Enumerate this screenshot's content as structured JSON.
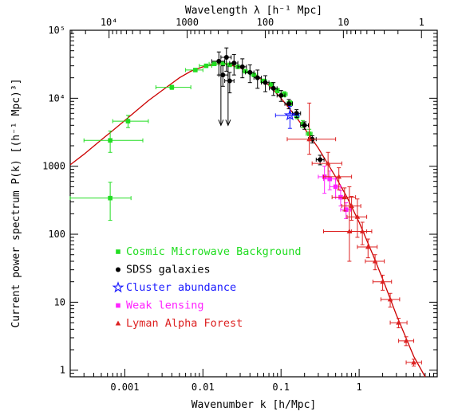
{
  "chart_data": {
    "type": "scatter",
    "xlabel": "Wavenumber k [h/Mpc]",
    "ylabel": "Current power spectrum P(k) [(h⁻¹ Mpc)³]",
    "top_axis_label": "Wavelength λ [h⁻¹ Mpc]",
    "x_scale": "log",
    "y_scale": "log",
    "xlim": [
      0.0002,
      10
    ],
    "ylim": [
      0.8,
      100000
    ],
    "x_ticks": [
      {
        "value": 0.001,
        "label": "0.001"
      },
      {
        "value": 0.01,
        "label": "0.01"
      },
      {
        "value": 0.1,
        "label": "0.1"
      },
      {
        "value": 1,
        "label": "1"
      }
    ],
    "y_ticks": [
      {
        "value": 1,
        "label": "1"
      },
      {
        "value": 10,
        "label": "10"
      },
      {
        "value": 100,
        "label": "100"
      },
      {
        "value": 1000,
        "label": "1000"
      },
      {
        "value": 10000,
        "label": "10⁴"
      },
      {
        "value": 100000,
        "label": "10⁵"
      }
    ],
    "top_ticks": [
      {
        "value": 10000,
        "label": "10⁴"
      },
      {
        "value": 1000,
        "label": "1000"
      },
      {
        "value": 100,
        "label": "100"
      },
      {
        "value": 10,
        "label": "10"
      },
      {
        "value": 1,
        "label": "1"
      }
    ],
    "legend_position": "lower-left",
    "model_curve": {
      "color": "#cc0000",
      "points": [
        [
          0.0002,
          1050
        ],
        [
          0.0003,
          1500
        ],
        [
          0.0005,
          2450
        ],
        [
          0.0007,
          3350
        ],
        [
          0.001,
          4700
        ],
        [
          0.0015,
          7000
        ],
        [
          0.002,
          9200
        ],
        [
          0.003,
          13000
        ],
        [
          0.005,
          20000
        ],
        [
          0.007,
          25000
        ],
        [
          0.01,
          29000
        ],
        [
          0.015,
          32000
        ],
        [
          0.02,
          32000
        ],
        [
          0.03,
          28000
        ],
        [
          0.05,
          21000
        ],
        [
          0.07,
          15500
        ],
        [
          0.1,
          10000
        ],
        [
          0.15,
          5600
        ],
        [
          0.2,
          3600
        ],
        [
          0.3,
          1850
        ],
        [
          0.5,
          700
        ],
        [
          0.7,
          350
        ],
        [
          1,
          150
        ],
        [
          1.5,
          50
        ],
        [
          2,
          22
        ],
        [
          3,
          6.5
        ],
        [
          5,
          1.6
        ],
        [
          7,
          0.8
        ]
      ]
    },
    "series": [
      {
        "name": "Cosmic Microwave Background",
        "color": "#22dd22",
        "marker": "square",
        "points": [
          {
            "x": 0.00065,
            "y": 340,
            "xerr": [
              0.0002,
              0.0012
            ],
            "yerr": [
              160,
              580
            ]
          },
          {
            "x": 0.00065,
            "y": 2400,
            "xerr": [
              0.0003,
              0.0017
            ],
            "yerr": [
              1600,
              3300
            ]
          },
          {
            "x": 0.0011,
            "y": 4600,
            "xerr": [
              0.0007,
              0.002
            ],
            "yerr": [
              3700,
              5600
            ]
          },
          {
            "x": 0.004,
            "y": 14500,
            "xerr": [
              0.0025,
              0.007
            ],
            "yerr": [
              13500,
              15500
            ]
          },
          {
            "x": 0.008,
            "y": 26000,
            "xerr": [
              0.006,
              0.01
            ],
            "yerr": [
              25000,
              27000
            ]
          },
          {
            "x": 0.011,
            "y": 30000,
            "xerr": [
              0.009,
              0.013
            ],
            "yerr": [
              29000,
              31000
            ]
          },
          {
            "x": 0.014,
            "y": 32000,
            "xerr": [
              0.012,
              0.016
            ],
            "yerr": [
              31000,
              33000
            ]
          },
          {
            "x": 0.018,
            "y": 32500,
            "xerr": [
              0.016,
              0.02
            ],
            "yerr": [
              31500,
              33500
            ]
          },
          {
            "x": 0.022,
            "y": 31000,
            "xerr": [
              0.02,
              0.025
            ],
            "yerr": [
              30000,
              32000
            ]
          },
          {
            "x": 0.028,
            "y": 29000,
            "xerr": [
              0.025,
              0.032
            ],
            "yerr": [
              28000,
              30000
            ]
          },
          {
            "x": 0.035,
            "y": 25000,
            "xerr": [
              0.032,
              0.04
            ],
            "yerr": [
              24000,
              26000
            ]
          },
          {
            "x": 0.045,
            "y": 22000,
            "xerr": [
              0.04,
              0.05
            ],
            "yerr": [
              21000,
              23000
            ]
          },
          {
            "x": 0.06,
            "y": 18000,
            "xerr": [
              0.055,
              0.065
            ],
            "yerr": [
              17000,
              19000
            ]
          },
          {
            "x": 0.075,
            "y": 16000,
            "xerr": [
              0.07,
              0.08
            ],
            "yerr": [
              15000,
              17000
            ]
          },
          {
            "x": 0.09,
            "y": 13000,
            "xerr": [
              0.085,
              0.095
            ],
            "yerr": [
              12000,
              14000
            ]
          },
          {
            "x": 0.11,
            "y": 11500,
            "xerr": [
              0.1,
              0.12
            ],
            "yerr": [
              10500,
              12500
            ]
          },
          {
            "x": 0.13,
            "y": 8500,
            "xerr": [
              0.12,
              0.14
            ],
            "yerr": [
              7800,
              9200
            ]
          },
          {
            "x": 0.16,
            "y": 5500,
            "xerr": [
              0.15,
              0.17
            ],
            "yerr": [
              5000,
              6000
            ]
          },
          {
            "x": 0.19,
            "y": 4200,
            "xerr": [
              0.18,
              0.2
            ],
            "yerr": [
              3700,
              4700
            ]
          },
          {
            "x": 0.23,
            "y": 3000,
            "xerr": [
              0.21,
              0.25
            ],
            "yerr": [
              2500,
              3500
            ]
          }
        ]
      },
      {
        "name": "SDSS galaxies",
        "color": "#000000",
        "marker": "circle",
        "points": [
          {
            "x": 0.016,
            "y": 35000,
            "xerr": [
              0.013,
              0.019
            ],
            "yerr": [
              22000,
              48000
            ]
          },
          {
            "x": 0.02,
            "y": 40000,
            "xerr": [
              0.017,
              0.023
            ],
            "yerr": [
              25000,
              55000
            ]
          },
          {
            "x": 0.025,
            "y": 33000,
            "xerr": [
              0.022,
              0.028
            ],
            "yerr": [
              22000,
              44000
            ]
          },
          {
            "x": 0.018,
            "y": 22000,
            "xerr": [
              0.016,
              0.021
            ],
            "yerr": [
              15000,
              30000
            ]
          },
          {
            "x": 0.022,
            "y": 18000,
            "xerr": [
              0.019,
              0.025
            ],
            "yerr": [
              12000,
              24000
            ]
          },
          {
            "x": 0.032,
            "y": 29000,
            "xerr": [
              0.028,
              0.036
            ],
            "yerr": [
              20000,
              38000
            ]
          },
          {
            "x": 0.04,
            "y": 24000,
            "xerr": [
              0.035,
              0.045
            ],
            "yerr": [
              17000,
              31000
            ]
          },
          {
            "x": 0.05,
            "y": 20000,
            "xerr": [
              0.045,
              0.056
            ],
            "yerr": [
              14000,
              26000
            ]
          },
          {
            "x": 0.063,
            "y": 17000,
            "xerr": [
              0.056,
              0.07
            ],
            "yerr": [
              12500,
              21500
            ]
          },
          {
            "x": 0.08,
            "y": 14000,
            "xerr": [
              0.071,
              0.089
            ],
            "yerr": [
              11000,
              17000
            ]
          },
          {
            "x": 0.1,
            "y": 11000,
            "xerr": [
              0.089,
              0.112
            ],
            "yerr": [
              9000,
              13000
            ]
          },
          {
            "x": 0.126,
            "y": 8300,
            "xerr": [
              0.112,
              0.14
            ],
            "yerr": [
              7000,
              9600
            ]
          },
          {
            "x": 0.158,
            "y": 6000,
            "xerr": [
              0.14,
              0.178
            ],
            "yerr": [
              5200,
              6800
            ]
          },
          {
            "x": 0.2,
            "y": 4000,
            "xerr": [
              0.178,
              0.224
            ],
            "yerr": [
              3500,
              4500
            ]
          },
          {
            "x": 0.251,
            "y": 2500,
            "xerr": [
              0.224,
              0.282
            ],
            "yerr": [
              2200,
              2800
            ]
          },
          {
            "x": 0.316,
            "y": 1250,
            "xerr": [
              0.282,
              0.355
            ],
            "yerr": [
              1050,
              1450
            ]
          }
        ]
      },
      {
        "name": "Cluster abundance",
        "color": "#1a1aff",
        "marker": "star",
        "points": [
          {
            "x": 0.13,
            "y": 5600,
            "xerr": [
              0.085,
              0.17
            ],
            "yerr": [
              3600,
              7600
            ]
          }
        ]
      },
      {
        "name": "Weak lensing",
        "color": "#ff22ff",
        "marker": "square",
        "points": [
          {
            "x": 0.36,
            "y": 700,
            "xerr": [
              0.3,
              0.42
            ],
            "yerr": [
              400,
              1000
            ]
          },
          {
            "x": 0.42,
            "y": 650,
            "xerr": [
              0.35,
              0.5
            ],
            "yerr": [
              450,
              850
            ]
          },
          {
            "x": 0.5,
            "y": 500,
            "xerr": [
              0.42,
              0.58
            ],
            "yerr": [
              350,
              650
            ]
          },
          {
            "x": 0.58,
            "y": 350,
            "xerr": [
              0.5,
              0.67
            ],
            "yerr": [
              260,
              440
            ]
          },
          {
            "x": 0.68,
            "y": 230,
            "xerr": [
              0.58,
              0.78
            ],
            "yerr": [
              170,
              290
            ]
          }
        ]
      },
      {
        "name": "Lyman Alpha Forest",
        "color": "#dd2222",
        "marker": "triangle",
        "points": [
          {
            "x": 0.23,
            "y": 2500,
            "xerr": [
              0.12,
              0.5
            ],
            "yerr": [
              1500,
              8500
            ]
          },
          {
            "x": 0.4,
            "y": 1100,
            "xerr": [
              0.25,
              0.6
            ],
            "yerr": [
              700,
              1600
            ]
          },
          {
            "x": 0.55,
            "y": 700,
            "xerr": [
              0.35,
              0.8
            ],
            "yerr": [
              450,
              950
            ]
          },
          {
            "x": 0.65,
            "y": 350,
            "xerr": [
              0.45,
              0.9
            ],
            "yerr": [
              220,
              480
            ]
          },
          {
            "x": 0.8,
            "y": 260,
            "xerr": [
              0.6,
              1.05
            ],
            "yerr": [
              160,
              360
            ]
          },
          {
            "x": 0.95,
            "y": 180,
            "xerr": [
              0.7,
              1.25
            ],
            "yerr": [
              90,
              330
            ]
          },
          {
            "x": 0.75,
            "y": 110,
            "xerr": [
              0.35,
              1.25
            ],
            "yerr": [
              40,
              500
            ]
          },
          {
            "x": 1.1,
            "y": 110,
            "xerr": [
              0.8,
              1.45
            ],
            "yerr": [
              70,
              150
            ]
          },
          {
            "x": 1.3,
            "y": 65,
            "xerr": [
              0.95,
              1.7
            ],
            "yerr": [
              45,
              85
            ]
          },
          {
            "x": 1.6,
            "y": 40,
            "xerr": [
              1.2,
              2.1
            ],
            "yerr": [
              30,
              50
            ]
          },
          {
            "x": 2.0,
            "y": 20,
            "xerr": [
              1.5,
              2.6
            ],
            "yerr": [
              15,
              25
            ]
          },
          {
            "x": 2.5,
            "y": 11,
            "xerr": [
              1.9,
              3.3
            ],
            "yerr": [
              8.5,
              13.5
            ]
          },
          {
            "x": 3.2,
            "y": 5,
            "xerr": [
              2.5,
              4.1
            ],
            "yerr": [
              4.2,
              5.8
            ]
          },
          {
            "x": 4.0,
            "y": 2.7,
            "xerr": [
              3.2,
              5.0
            ],
            "yerr": [
              2.3,
              3.1
            ]
          },
          {
            "x": 5.0,
            "y": 1.3,
            "xerr": [
              4.0,
              6.3
            ],
            "yerr": [
              1.15,
              1.45
            ]
          }
        ]
      }
    ],
    "upper_limits": {
      "color": "#000000",
      "points": [
        {
          "x": 0.017,
          "y_top": 30000,
          "y_bottom": 4000
        },
        {
          "x": 0.021,
          "y_top": 30000,
          "y_bottom": 4000
        }
      ]
    }
  }
}
